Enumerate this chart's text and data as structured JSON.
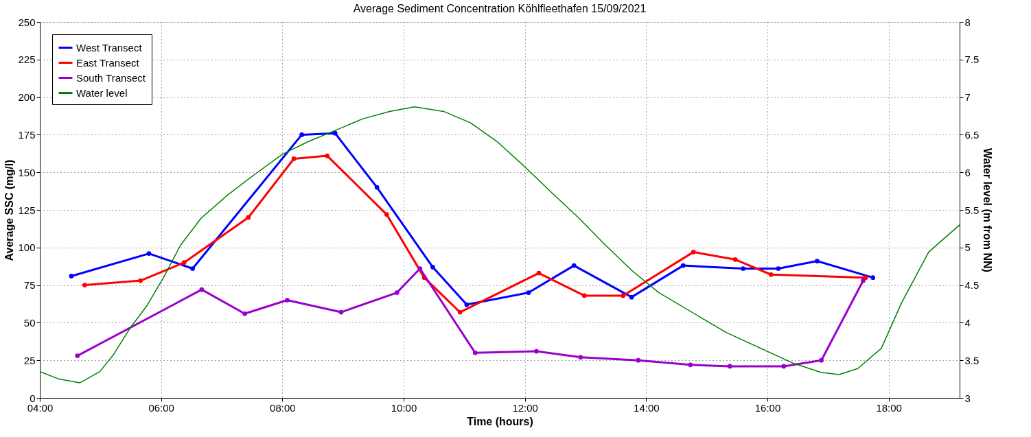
{
  "chart_data": {
    "type": "line",
    "title": "Average Sediment Concentration Köhlfleethafen 15/09/2021",
    "xlabel": "Time (hours)",
    "ylabel": "Average SSC (mg/l)",
    "y2label": "Water level (m from NN)",
    "xlim": [
      4,
      19.17
    ],
    "xticks": [
      {
        "value": 4,
        "label": "04:00"
      },
      {
        "value": 6,
        "label": "06:00"
      },
      {
        "value": 8,
        "label": "08:00"
      },
      {
        "value": 10,
        "label": "10:00"
      },
      {
        "value": 12,
        "label": "12:00"
      },
      {
        "value": 14,
        "label": "14:00"
      },
      {
        "value": 16,
        "label": "16:00"
      },
      {
        "value": 18,
        "label": "18:00"
      }
    ],
    "ylim": [
      0,
      250
    ],
    "yticks": [
      0,
      25,
      50,
      75,
      100,
      125,
      150,
      175,
      200,
      225,
      250
    ],
    "y2lim": [
      3,
      8
    ],
    "y2ticks": [
      3,
      3.5,
      4,
      4.5,
      5,
      5.5,
      6,
      6.5,
      7,
      7.5,
      8
    ],
    "grid": true,
    "legend": "top left",
    "marker": "circle",
    "line_style": "solid",
    "series": [
      {
        "name": "West Transect",
        "color": "#0000ff",
        "x": [
          4.52,
          5.8,
          6.52,
          8.32,
          8.87,
          9.56,
          10.48,
          11.04,
          12.06,
          12.81,
          13.76,
          14.61,
          15.6,
          16.18,
          16.82,
          17.74
        ],
        "values": [
          81,
          96,
          86,
          175,
          176,
          140,
          87,
          62,
          70,
          88,
          67,
          88,
          86,
          86,
          91,
          80
        ]
      },
      {
        "name": "East Transect",
        "color": "#ff0000",
        "x": [
          4.74,
          5.66,
          6.38,
          7.44,
          8.19,
          8.74,
          9.72,
          10.34,
          10.93,
          12.23,
          12.98,
          13.62,
          14.78,
          15.47,
          16.06,
          17.62
        ],
        "values": [
          75,
          78,
          90,
          120,
          159,
          161,
          122,
          80,
          57,
          83,
          68,
          68,
          97,
          92,
          82,
          80
        ]
      },
      {
        "name": "South Transect",
        "color": "#9900cc",
        "x": [
          4.62,
          6.67,
          7.38,
          8.08,
          8.97,
          9.89,
          10.27,
          11.18,
          12.19,
          12.92,
          13.87,
          14.73,
          15.38,
          16.27,
          16.89,
          17.58
        ],
        "values": [
          28,
          72,
          56,
          65,
          57,
          70,
          86,
          30,
          31,
          27,
          25,
          22,
          21,
          21,
          25,
          78
        ]
      },
      {
        "name": "Water level",
        "color": "#008000",
        "type": "line",
        "marker": "none",
        "axis": "y2",
        "x": [
          4.0,
          4.32,
          4.66,
          4.99,
          5.21,
          5.49,
          5.77,
          6.04,
          6.32,
          6.66,
          7.1,
          7.54,
          8.0,
          8.43,
          8.88,
          9.32,
          9.77,
          10.18,
          10.66,
          11.1,
          11.54,
          11.99,
          12.43,
          12.88,
          13.32,
          13.77,
          14.21,
          15.32,
          16.43,
          16.88,
          17.18,
          17.49,
          17.88,
          18.21,
          18.66,
          19.17
        ],
        "values": [
          3.35,
          3.25,
          3.2,
          3.35,
          3.57,
          3.93,
          4.23,
          4.6,
          5.03,
          5.39,
          5.7,
          5.97,
          6.24,
          6.41,
          6.56,
          6.71,
          6.81,
          6.87,
          6.81,
          6.66,
          6.41,
          6.08,
          5.74,
          5.4,
          5.04,
          4.69,
          4.4,
          3.87,
          3.46,
          3.34,
          3.31,
          3.39,
          3.66,
          4.26,
          4.94,
          5.3
        ]
      }
    ]
  }
}
